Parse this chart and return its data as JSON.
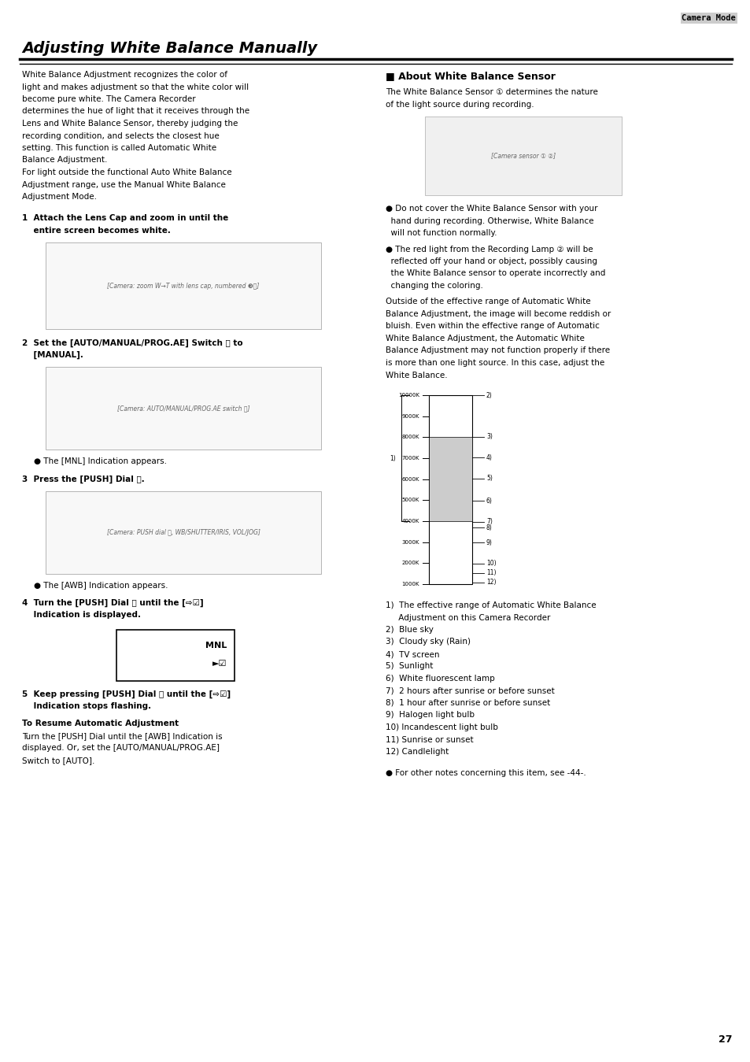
{
  "bg_color": "#ffffff",
  "page_number": "27",
  "header_tag": "Camera Mode",
  "title": "Adjusting White Balance Manually",
  "intro_text_lines": [
    "White Balance Adjustment recognizes the color of",
    "light and makes adjustment so that the white color will",
    "become pure white. The Camera Recorder",
    "determines the hue of light that it receives through the",
    "Lens and White Balance Sensor, thereby judging the",
    "recording condition, and selects the closest hue",
    "setting. This function is called Automatic White",
    "Balance Adjustment.",
    "For light outside the functional Auto White Balance",
    "Adjustment range, use the Manual White Balance",
    "Adjustment Mode."
  ],
  "step1_line1": "1  Attach the Lens Cap and zoom in until the",
  "step1_line2": "    entire screen becomes white.",
  "step2_line1": "2  Set the [AUTO/MANUAL/PROG.AE] Switch ⓕ to",
  "step2_line2": "    [MANUAL].",
  "step2_bullet": "● The [MNL] Indication appears.",
  "step3_line1": "3  Press the [PUSH] Dial ⓓ.",
  "step3_bullet": "● The [AWB] Indication appears.",
  "step4_line1": "4  Turn the [PUSH] Dial ⓓ until the [⇨☑]",
  "step4_line2": "    Indication is displayed.",
  "step5_line1": "5  Keep pressing [PUSH] Dial ⓓ until the [⇨☑]",
  "step5_line2": "    Indication stops flashing.",
  "resume_header": "To Resume Automatic Adjustment",
  "resume_lines": [
    "Turn the [PUSH] Dial until the [AWB] Indication is",
    "displayed. Or, set the [AUTO/MANUAL/PROG.AE]",
    "Switch to [AUTO]."
  ],
  "right_section_header": "■ About White Balance Sensor",
  "right_intro_lines": [
    "The White Balance Sensor ① determines the nature",
    "of the light source during recording."
  ],
  "right_bullet1_lines": [
    "● Do not cover the White Balance Sensor with your",
    "  hand during recording. Otherwise, White Balance",
    "  will not function normally."
  ],
  "right_bullet2_lines": [
    "● The red light from the Recording Lamp ② will be",
    "  reflected off your hand or object, possibly causing",
    "  the White Balance sensor to operate incorrectly and",
    "  changing the coloring."
  ],
  "right_para_lines": [
    "Outside of the effective range of Automatic White",
    "Balance Adjustment, the image will become reddish or",
    "bluish. Even within the effective range of Automatic",
    "White Balance Adjustment, the Automatic White",
    "Balance Adjustment may not function properly if there",
    "is more than one light source. In this case, adjust the",
    "White Balance."
  ],
  "wb_scale_labels": [
    "10000K",
    "9000K",
    "8000K",
    "7000K",
    "6000K",
    "5000K",
    "4000K",
    "3000K",
    "2000K",
    "1000K"
  ],
  "wb_markers": [
    "2)",
    "3)",
    "4)",
    "5)",
    "6)",
    "7)",
    "8)",
    "9)",
    "10)",
    "11)",
    "12)"
  ],
  "wb_list_items": [
    "1)  The effective range of Automatic White Balance",
    "     Adjustment on this Camera Recorder",
    "2)  Blue sky",
    "3)  Cloudy sky (Rain)",
    "4)  TV screen",
    "5)  Sunlight",
    "6)  White fluorescent lamp",
    "7)  2 hours after sunrise or before sunset",
    "8)  1 hour after sunrise or before sunset",
    "9)  Halogen light bulb",
    "10) Incandescent light bulb",
    "11) Sunrise or sunset",
    "12) Candlelight"
  ],
  "final_note": "● For other notes concerning this item, see -44-."
}
